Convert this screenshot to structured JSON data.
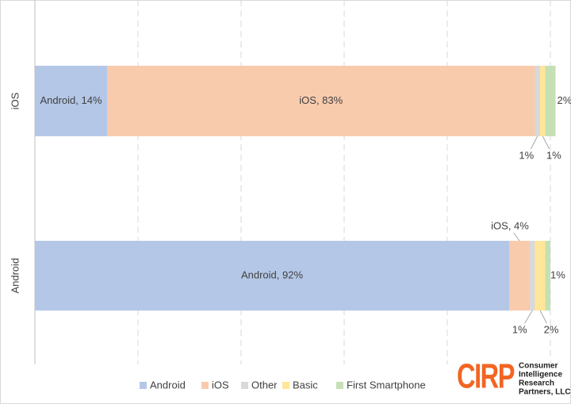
{
  "chart_data": {
    "type": "stacked-bar-horizontal",
    "categories": [
      "iOS",
      "Android"
    ],
    "series": [
      {
        "name": "Android",
        "color": "#b4c7e7",
        "values": [
          14,
          92
        ],
        "value_labels": [
          "Android, 14%",
          "Android, 92%"
        ]
      },
      {
        "name": "iOS",
        "color": "#f8cbad",
        "values": [
          83,
          4
        ],
        "value_labels": [
          "iOS, 83%",
          "iOS, 4%"
        ]
      },
      {
        "name": "Other",
        "color": "#d9d9d9",
        "values": [
          1,
          1
        ],
        "value_labels": [
          "1%",
          "1%"
        ]
      },
      {
        "name": "Basic",
        "color": "#ffe699",
        "values": [
          1,
          2
        ],
        "value_labels": [
          "1%",
          "2%"
        ]
      },
      {
        "name": "First Smartphone",
        "color": "#c5e0b4",
        "values": [
          2,
          1
        ],
        "value_labels": [
          "2%",
          "1%"
        ]
      }
    ],
    "xlim": [
      0,
      100
    ],
    "xticks": [
      0,
      20,
      40,
      60,
      80,
      100
    ],
    "grid": true,
    "legend": "bottom"
  },
  "logo": {
    "mark": "CIRP",
    "lines": [
      "Consumer",
      "Intelligence",
      "Research",
      "Partners, LLC"
    ]
  }
}
